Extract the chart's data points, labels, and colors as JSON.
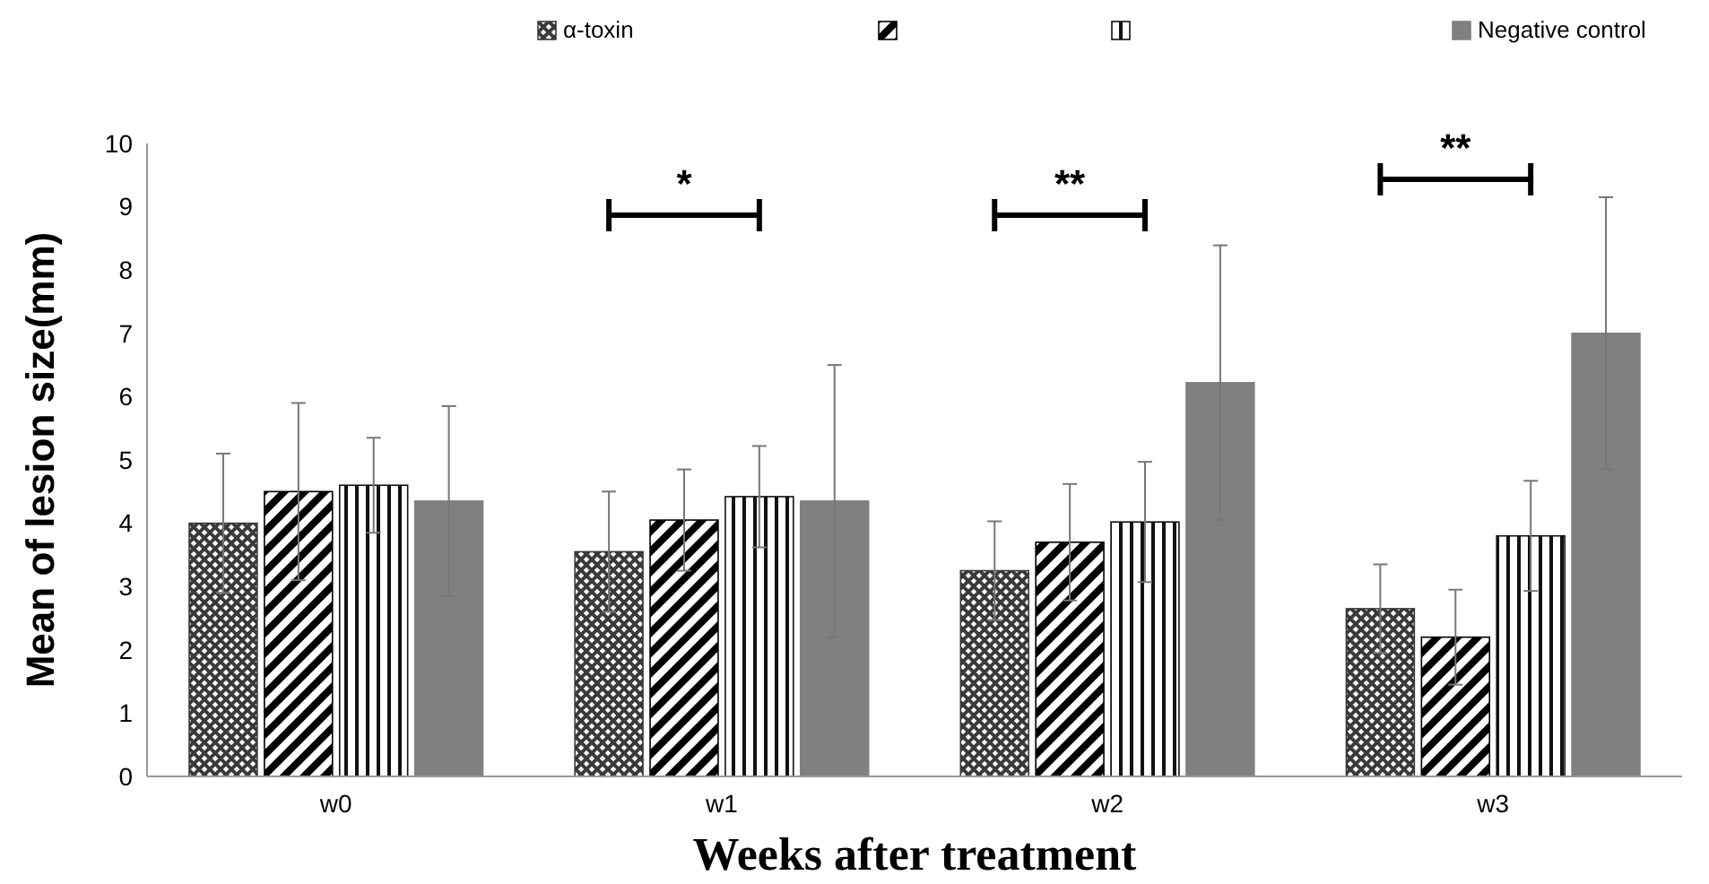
{
  "chart_data": {
    "type": "bar",
    "xlabel": "Weeks after treatment",
    "ylabel": "Mean of lesion size(mm)",
    "categories": [
      "w0",
      "w1",
      "w2",
      "w3"
    ],
    "series": [
      {
        "name": "α-toxin",
        "color": "#3a3a3a",
        "values": [
          4.0,
          3.55,
          3.25,
          2.65
        ],
        "errors": [
          1.1,
          0.95,
          0.78,
          0.7
        ]
      },
      {
        "color": "#000000",
        "values": [
          4.5,
          4.05,
          3.7,
          2.2
        ],
        "errors": [
          1.4,
          0.8,
          0.92,
          0.75
        ]
      },
      {
        "color": "#111111",
        "values": [
          4.6,
          4.42,
          4.02,
          3.8
        ],
        "errors": [
          0.75,
          0.8,
          0.95,
          0.87
        ]
      },
      {
        "name": "Negative control",
        "color": "#808080",
        "values": [
          4.35,
          4.35,
          6.22,
          7.0
        ],
        "errors": [
          1.5,
          2.15,
          2.17,
          2.15
        ]
      }
    ],
    "ylim": [
      0,
      10
    ],
    "yticks": [
      0,
      1,
      2,
      3,
      4,
      5,
      6,
      7,
      8,
      9,
      10
    ],
    "grid": false,
    "legend": "top",
    "annotations": [
      "*",
      "**",
      "**"
    ]
  }
}
